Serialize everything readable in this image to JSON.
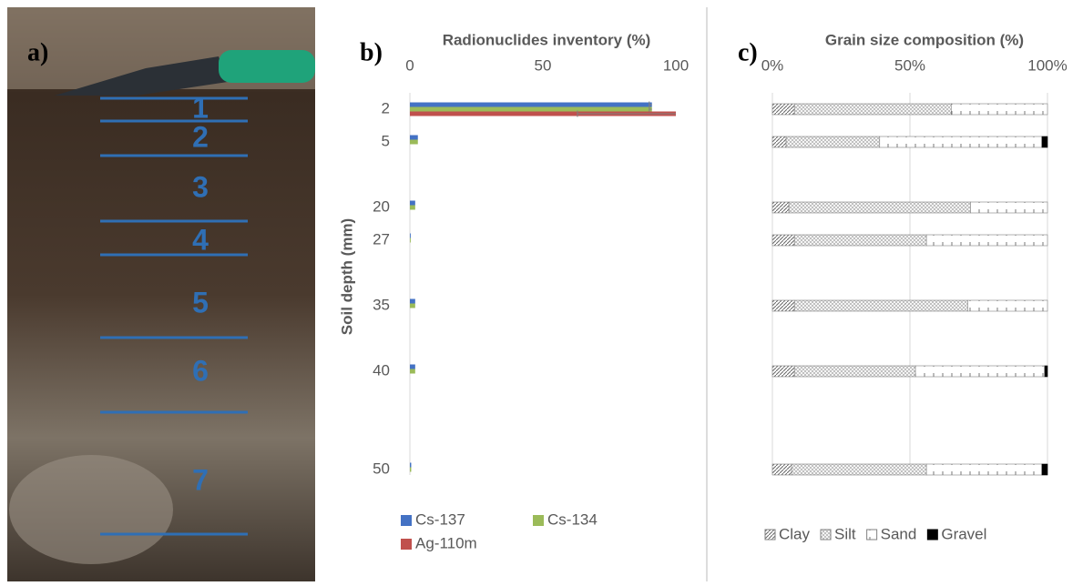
{
  "photo": {
    "panel_label": "a)",
    "layer_labels": [
      "1",
      "2",
      "3",
      "4",
      "5",
      "6",
      "7"
    ]
  },
  "chart_data": [
    {
      "type": "bar",
      "orientation": "horizontal",
      "panel_label": "b)",
      "title": "Radionuclides inventory (%)",
      "y_label": "Soil depth (mm)",
      "categories": [
        "2",
        "5",
        null,
        "20",
        "27",
        null,
        "35",
        null,
        "40",
        null,
        null,
        "50"
      ],
      "series": [
        {
          "name": "Cs-137",
          "color": "#4472c4",
          "values": [
            91,
            3,
            null,
            2,
            0.3,
            null,
            2,
            null,
            2,
            null,
            null,
            0.5
          ],
          "errors": [
            1,
            null,
            null,
            null,
            null,
            null,
            null,
            null,
            null,
            null,
            null,
            null
          ]
        },
        {
          "name": "Cs-134",
          "color": "#9bbb59",
          "values": [
            91,
            3,
            null,
            2,
            0.3,
            null,
            2,
            null,
            2,
            null,
            null,
            0.5
          ],
          "errors": [
            1,
            null,
            null,
            null,
            null,
            null,
            null,
            null,
            null,
            null,
            null,
            null
          ]
        },
        {
          "name": "Ag-110m",
          "color": "#c0504d",
          "values": [
            100,
            0,
            null,
            0,
            0,
            null,
            0,
            null,
            0,
            null,
            null,
            0
          ],
          "errors": [
            37,
            null,
            null,
            null,
            null,
            null,
            null,
            null,
            null,
            null,
            null,
            null
          ]
        }
      ],
      "error_direction": "minus",
      "xlim": [
        0,
        100
      ],
      "xticks": [
        0,
        50,
        100
      ],
      "grid": false,
      "legend": "bottom-left"
    },
    {
      "type": "stacked-bar",
      "orientation": "horizontal",
      "panel_label": "c)",
      "title": "Grain size composition (%)",
      "categories": [
        null,
        null,
        null,
        null,
        null,
        null,
        null,
        null,
        null,
        null,
        null,
        null
      ],
      "series": [
        {
          "name": "Clay",
          "color": "#808080",
          "pattern": "diagonal",
          "values": [
            8,
            5,
            null,
            6,
            8,
            null,
            8,
            null,
            8,
            null,
            null,
            7
          ]
        },
        {
          "name": "Silt",
          "color": "#808080",
          "pattern": "crosshatch",
          "values": [
            57,
            34,
            null,
            66,
            48,
            null,
            63,
            null,
            44,
            null,
            null,
            49
          ]
        },
        {
          "name": "Sand",
          "color": "#808080",
          "pattern": "vertical",
          "values": [
            35,
            59,
            null,
            28,
            44,
            null,
            29,
            null,
            47,
            null,
            null,
            42
          ]
        },
        {
          "name": "Gravel",
          "color": "#000000",
          "pattern": "solid",
          "values": [
            0,
            2,
            null,
            0,
            0,
            null,
            0,
            null,
            1,
            null,
            null,
            2
          ]
        }
      ],
      "xlim": [
        0,
        100
      ],
      "xticks": [
        {
          "value": 0,
          "label": "0%"
        },
        {
          "value": 50,
          "label": "50%"
        },
        {
          "value": 100,
          "label": "100%"
        }
      ],
      "grid": true,
      "legend": "bottom"
    }
  ]
}
